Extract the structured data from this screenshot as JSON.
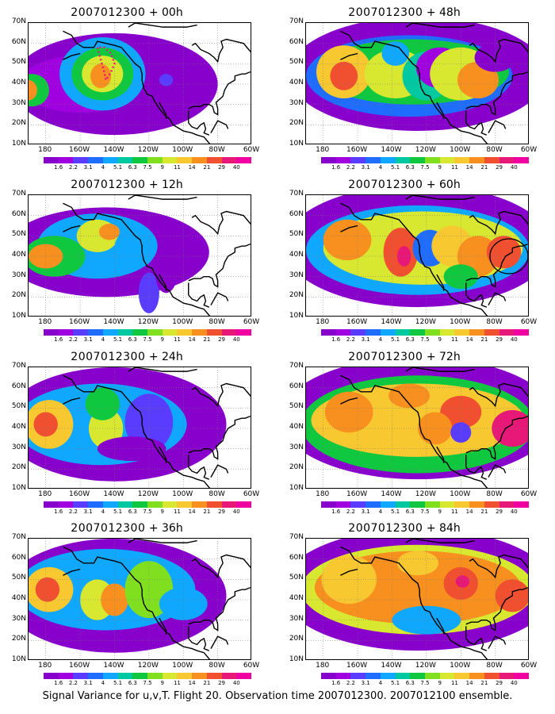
{
  "caption": "Signal Variance for u,v,T. Flight 20. Observation time 2007012300. 2007012100 ensemble.",
  "run": "2007012300",
  "lat_labels": [
    "70N",
    "60N",
    "50N",
    "40N",
    "30N",
    "20N",
    "10N"
  ],
  "lon_labels": [
    "180",
    "160W",
    "140W",
    "120W",
    "100W",
    "80W",
    "60W"
  ],
  "colorbar": {
    "labels": [
      "1.6",
      "2.2",
      "3.1",
      "4",
      "5.1",
      "6.3",
      "7.5",
      "9",
      "11",
      "14",
      "21",
      "29",
      "40"
    ],
    "colors": [
      "#8800cc",
      "#a000e0",
      "#5a3cff",
      "#1f6dff",
      "#10a8ff",
      "#00c8a0",
      "#10c840",
      "#80e020",
      "#d8e830",
      "#f8c830",
      "#f89020",
      "#f05030",
      "#e81878",
      "#f000a0"
    ]
  },
  "panels": [
    {
      "lead": "+ 00h"
    },
    {
      "lead": "+ 48h"
    },
    {
      "lead": "+ 12h"
    },
    {
      "lead": "+ 60h"
    },
    {
      "lead": "+ 24h"
    },
    {
      "lead": "+ 72h"
    },
    {
      "lead": "+ 36h"
    },
    {
      "lead": "+ 84h"
    }
  ]
}
